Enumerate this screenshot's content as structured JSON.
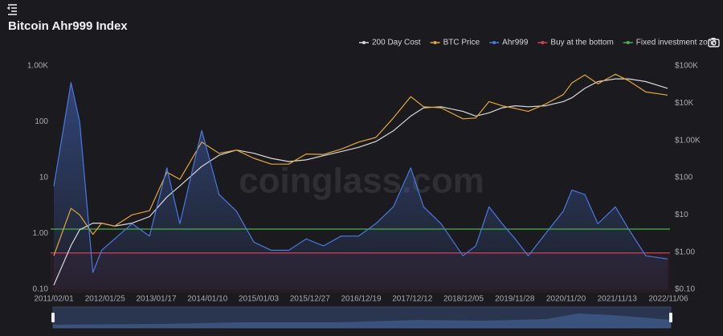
{
  "chart_data": {
    "type": "line",
    "title": "Bitcoin Ahr999 Index",
    "watermark": "coinglass.com",
    "log_scale": true,
    "x": [
      "2011/02/01",
      "2011/06/01",
      "2011/08/01",
      "2011/11/01",
      "2012/01/01",
      "2012/04/01",
      "2012/08/01",
      "2012/12/01",
      "2013/04/01",
      "2013/07/01",
      "2013/12/01",
      "2014/04/01",
      "2014/08/01",
      "2014/12/01",
      "2015/04/01",
      "2015/08/01",
      "2015/12/01",
      "2016/04/01",
      "2016/08/01",
      "2016/12/01",
      "2017/04/01",
      "2017/08/01",
      "2017/12/01",
      "2018/03/01",
      "2018/07/01",
      "2018/12/01",
      "2019/03/01",
      "2019/06/01",
      "2019/09/01",
      "2019/12/01",
      "2020/03/01",
      "2020/07/01",
      "2020/11/01",
      "2021/01/01",
      "2021/04/01",
      "2021/07/01",
      "2021/11/01",
      "2022/02/01",
      "2022/06/01",
      "2022/11/01"
    ],
    "series": [
      {
        "name": "200 Day Cost",
        "color": "#d9d9d9",
        "axis": "y2",
        "values": [
          0.13,
          1.5,
          4,
          6,
          6,
          5,
          6,
          9,
          30,
          60,
          200,
          400,
          550,
          450,
          330,
          270,
          300,
          390,
          500,
          650,
          930,
          1800,
          4500,
          7500,
          8000,
          6000,
          4500,
          5500,
          7500,
          8500,
          8000,
          8500,
          11000,
          14000,
          25000,
          38000,
          45000,
          45000,
          38000,
          25000
        ]
      },
      {
        "name": "BTC Price",
        "color": "#e3a73a",
        "axis": "y2",
        "values": [
          0.8,
          15,
          10,
          3,
          6,
          5,
          10,
          13,
          140,
          90,
          900,
          450,
          550,
          330,
          230,
          230,
          430,
          420,
          580,
          900,
          1200,
          4000,
          15000,
          8000,
          7500,
          3800,
          4000,
          11000,
          8500,
          7200,
          6000,
          9500,
          17000,
          35000,
          57000,
          33000,
          60000,
          40000,
          20000,
          16500
        ]
      },
      {
        "name": "Ahr999",
        "color": "#4a78e0",
        "values": [
          7,
          500,
          100,
          0.2,
          0.5,
          0.8,
          1.5,
          0.9,
          15,
          1.5,
          70,
          5,
          2.5,
          0.7,
          0.5,
          0.5,
          0.8,
          0.6,
          0.9,
          0.9,
          1.5,
          3,
          15,
          3,
          1.5,
          0.4,
          0.6,
          3,
          1.5,
          0.8,
          0.4,
          1.0,
          2.5,
          6,
          5,
          1.5,
          3,
          1.2,
          0.4,
          0.35
        ]
      }
    ],
    "reference_lines": [
      {
        "name": "Buy at the bottom",
        "color": "#d0405a",
        "value": 0.45
      },
      {
        "name": "Fixed investment zone",
        "color": "#4caf50",
        "value": 1.2
      }
    ],
    "xlim": [
      "2011/02/01",
      "2022/11/06"
    ],
    "xticks": [
      "2011/02/01",
      "2012/01/25",
      "2013/01/17",
      "2014/01/10",
      "2015/01/03",
      "2015/12/27",
      "2016/12/19",
      "2017/12/12",
      "2018/12/05",
      "2019/11/28",
      "2020/11/20",
      "2021/11/13",
      "2022/11/06"
    ],
    "ylim": [
      0.1,
      1000
    ],
    "yticks": [
      {
        "value": 0.1,
        "label": "0.10"
      },
      {
        "value": 1,
        "label": "1.00"
      },
      10,
      100,
      {
        "value": 1000,
        "label": "1.00K"
      }
    ],
    "y2lim": [
      0.1,
      100000
    ],
    "y2ticks": [
      {
        "value": 0.1,
        "label": "$0.10"
      },
      {
        "value": 1,
        "label": "$1.00"
      },
      {
        "value": 10,
        "label": "$10"
      },
      {
        "value": 100,
        "label": "$100"
      },
      {
        "value": 1000,
        "label": "$1.00K"
      },
      {
        "value": 10000,
        "label": "$10K"
      },
      {
        "value": 100000,
        "label": "$100K"
      }
    ]
  }
}
